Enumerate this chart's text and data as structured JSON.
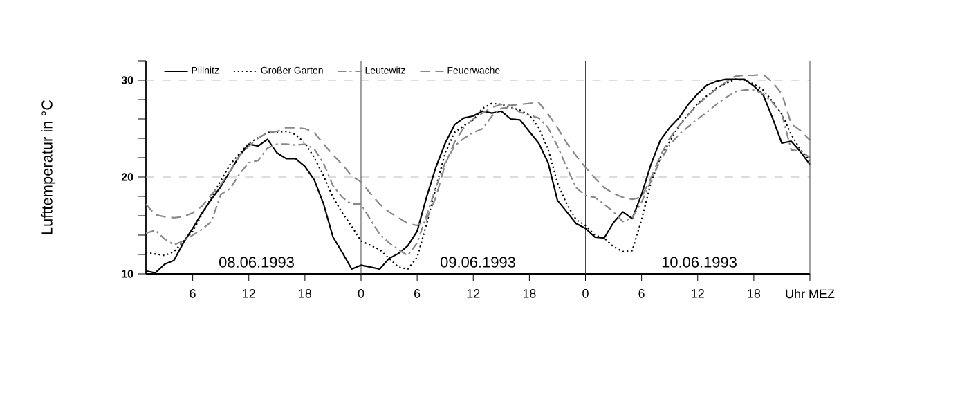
{
  "chart_data": {
    "type": "line",
    "ylabel": "Lufttemperatur in °C",
    "xlim": [
      "1993-06-08T01:00",
      "1993-06-11T00:00"
    ],
    "ylim": [
      10,
      32
    ],
    "xticks": [
      {
        "value": "1993-06-08T06:00",
        "label": "6"
      },
      {
        "value": "1993-06-08T12:00",
        "label": "12"
      },
      {
        "value": "1993-06-08T18:00",
        "label": "18"
      },
      {
        "value": "1993-06-09T00:00",
        "label": "0"
      },
      {
        "value": "1993-06-09T06:00",
        "label": "6"
      },
      {
        "value": "1993-06-09T12:00",
        "label": "12"
      },
      {
        "value": "1993-06-09T18:00",
        "label": "18"
      },
      {
        "value": "1993-06-10T00:00",
        "label": "0"
      },
      {
        "value": "1993-06-10T06:00",
        "label": "6"
      },
      {
        "value": "1993-06-10T12:00",
        "label": "12"
      },
      {
        "value": "1993-06-10T18:00",
        "label": "18"
      },
      {
        "value": "1993-06-11T00:00",
        "label": "Uhr MEZ"
      }
    ],
    "yticks": [
      10,
      {
        "value": 12,
        "label": null
      },
      {
        "value": 14,
        "label": null
      },
      {
        "value": 16,
        "label": null
      },
      {
        "value": 18,
        "label": null
      },
      20,
      {
        "value": 22,
        "label": null
      },
      {
        "value": 24,
        "label": null
      },
      {
        "value": 26,
        "label": null
      },
      {
        "value": 28,
        "label": null
      },
      30,
      {
        "value": 32,
        "label": null
      }
    ],
    "legend": "top left",
    "ref_lines": [
      {
        "axis": "y",
        "value": 20,
        "color": "#bbbbbb",
        "line_style": "dashed"
      },
      {
        "axis": "y",
        "value": 30,
        "color": "#bbbbbb",
        "line_style": "dashed"
      },
      {
        "axis": "x",
        "value": "1993-06-09T00:00",
        "color": "#444444"
      },
      {
        "axis": "x",
        "value": "1993-06-10T00:00",
        "color": "#444444"
      }
    ],
    "annotations": [
      "08.06.1993",
      "09.06.1993",
      "10.06.1993"
    ],
    "x": [
      "1993-06-08T01:00",
      "1993-06-08T02:00",
      "1993-06-08T03:00",
      "1993-06-08T04:00",
      "1993-06-08T05:00",
      "1993-06-08T06:00",
      "1993-06-08T07:00",
      "1993-06-08T08:00",
      "1993-06-08T09:00",
      "1993-06-08T10:00",
      "1993-06-08T11:00",
      "1993-06-08T12:00",
      "1993-06-08T13:00",
      "1993-06-08T14:00",
      "1993-06-08T15:00",
      "1993-06-08T16:00",
      "1993-06-08T17:00",
      "1993-06-08T18:00",
      "1993-06-08T19:00",
      "1993-06-08T20:00",
      "1993-06-08T21:00",
      "1993-06-08T22:00",
      "1993-06-08T23:00",
      "1993-06-09T00:00",
      "1993-06-09T01:00",
      "1993-06-09T02:00",
      "1993-06-09T03:00",
      "1993-06-09T04:00",
      "1993-06-09T05:00",
      "1993-06-09T06:00",
      "1993-06-09T07:00",
      "1993-06-09T08:00",
      "1993-06-09T09:00",
      "1993-06-09T10:00",
      "1993-06-09T11:00",
      "1993-06-09T12:00",
      "1993-06-09T13:00",
      "1993-06-09T14:00",
      "1993-06-09T15:00",
      "1993-06-09T16:00",
      "1993-06-09T17:00",
      "1993-06-09T18:00",
      "1993-06-09T19:00",
      "1993-06-09T20:00",
      "1993-06-09T21:00",
      "1993-06-09T22:00",
      "1993-06-09T23:00",
      "1993-06-10T00:00",
      "1993-06-10T01:00",
      "1993-06-10T02:00",
      "1993-06-10T03:00",
      "1993-06-10T04:00",
      "1993-06-10T05:00",
      "1993-06-10T06:00",
      "1993-06-10T07:00",
      "1993-06-10T08:00",
      "1993-06-10T09:00",
      "1993-06-10T10:00",
      "1993-06-10T11:00",
      "1993-06-10T12:00",
      "1993-06-10T13:00",
      "1993-06-10T14:00",
      "1993-06-10T15:00",
      "1993-06-10T16:00",
      "1993-06-10T17:00",
      "1993-06-10T18:00",
      "1993-06-10T19:00",
      "1993-06-10T20:00",
      "1993-06-10T21:00",
      "1993-06-10T22:00",
      "1993-06-10T23:00",
      "1993-06-11T00:00"
    ],
    "series": [
      {
        "name": "Pillnitz",
        "color": "#000000",
        "line_style": "solid",
        "values": [
          10.3,
          10.1,
          11.0,
          11.4,
          13.2,
          14.7,
          16.3,
          17.7,
          19.0,
          20.6,
          22.2,
          23.4,
          23.2,
          23.9,
          22.5,
          21.9,
          21.9,
          21.1,
          19.7,
          17.2,
          13.8,
          12.2,
          10.5,
          10.9,
          10.7,
          10.5,
          11.6,
          12.1,
          12.9,
          14.4,
          17.9,
          21.0,
          23.5,
          25.4,
          26.1,
          26.3,
          26.8,
          26.6,
          26.8,
          26.0,
          25.9,
          24.7,
          23.5,
          21.5,
          17.6,
          16.4,
          15.2,
          14.7,
          13.8,
          13.7,
          15.3,
          16.4,
          15.7,
          18.2,
          21.3,
          23.8,
          25.1,
          26.1,
          27.5,
          28.6,
          29.5,
          29.9,
          30.1,
          30.1,
          30.1,
          29.4,
          28.5,
          26.1,
          23.5,
          23.7,
          22.6,
          21.3
        ]
      },
      {
        "name": "Großer Garten",
        "color": "#000000",
        "line_style": "dotted",
        "x": [
          "1993-06-08T01:00",
          "1993-06-08T03:00",
          "1993-06-08T04:00",
          "1993-06-08T06:00",
          "1993-06-08T08:00",
          "1993-06-08T10:00",
          "1993-06-08T12:00",
          "1993-06-08T14:00",
          "1993-06-08T16:00",
          "1993-06-08T17:00",
          "1993-06-08T18:00",
          "1993-06-08T19:00",
          "1993-06-08T20:00",
          "1993-06-08T21:00",
          "1993-06-08T22:00",
          "1993-06-08T23:00",
          "1993-06-09T00:00",
          "1993-06-09T02:00",
          "1993-06-09T04:00",
          "1993-06-09T05:00",
          "1993-06-09T06:00",
          "1993-06-09T07:00",
          "1993-06-09T08:00",
          "1993-06-09T09:00",
          "1993-06-09T10:00",
          "1993-06-09T11:00",
          "1993-06-09T12:00",
          "1993-06-09T13:00",
          "1993-06-09T14:00",
          "1993-06-09T15:00",
          "1993-06-09T16:00",
          "1993-06-09T17:00",
          "1993-06-09T18:00",
          "1993-06-09T19:00",
          "1993-06-09T20:00",
          "1993-06-09T21:00",
          "1993-06-09T22:00",
          "1993-06-09T23:00",
          "1993-06-10T00:00",
          "1993-06-10T01:00",
          "1993-06-10T02:00",
          "1993-06-10T03:00",
          "1993-06-10T04:00",
          "1993-06-10T05:00",
          "1993-06-10T06:00",
          "1993-06-10T07:00",
          "1993-06-10T08:00",
          "1993-06-10T10:00",
          "1993-06-10T12:00",
          "1993-06-10T14:00",
          "1993-06-10T16:00",
          "1993-06-10T17:00",
          "1993-06-10T18:00",
          "1993-06-10T19:00",
          "1993-06-10T20:00",
          "1993-06-10T21:00",
          "1993-06-10T22:00",
          "1993-06-10T23:00",
          "1993-06-11T00:00"
        ],
        "values": [
          12.2,
          11.9,
          12.3,
          14.4,
          17.9,
          21.3,
          23.5,
          24.6,
          24.7,
          24.4,
          23.5,
          22.0,
          20.1,
          17.9,
          16.3,
          14.9,
          13.4,
          12.5,
          10.7,
          10.5,
          11.7,
          15.1,
          18.9,
          22.5,
          24.6,
          25.3,
          25.9,
          27.1,
          27.6,
          27.5,
          27.2,
          26.9,
          26.4,
          25.1,
          22.9,
          19.4,
          17.2,
          15.6,
          15.0,
          14.0,
          13.7,
          12.8,
          12.3,
          12.4,
          15.6,
          19.4,
          22.0,
          25.3,
          27.6,
          29.2,
          30.1,
          30.0,
          29.6,
          29.0,
          27.8,
          26.5,
          24.4,
          22.8,
          21.7
        ]
      },
      {
        "name": "Leutewitz",
        "color": "#888888",
        "line_style": "dashdot",
        "values": [
          14.2,
          14.5,
          13.6,
          13.0,
          13.4,
          14.0,
          14.6,
          15.4,
          18.2,
          18.8,
          20.3,
          21.5,
          21.7,
          23.0,
          23.4,
          23.4,
          23.3,
          23.4,
          22.9,
          21.4,
          19.1,
          17.9,
          17.2,
          17.2,
          15.6,
          14.1,
          13.2,
          12.5,
          11.9,
          13.2,
          16.0,
          18.9,
          21.5,
          23.2,
          24.0,
          24.6,
          25.0,
          26.3,
          27.1,
          27.2,
          26.7,
          26.4,
          26.1,
          25.1,
          23.2,
          21.0,
          18.9,
          18.1,
          17.9,
          17.2,
          16.4,
          15.4,
          15.8,
          17.4,
          19.6,
          21.7,
          23.3,
          24.4,
          25.2,
          26.0,
          26.7,
          27.5,
          28.2,
          28.8,
          29.0,
          29.0,
          28.6,
          27.7,
          26.5,
          22.8,
          22.7,
          22.0
        ]
      },
      {
        "name": "Feuerwache",
        "color": "#888888",
        "line_style": "dashed",
        "values": [
          17.2,
          16.1,
          15.9,
          15.8,
          15.9,
          16.3,
          17.0,
          18.2,
          19.2,
          20.6,
          22.2,
          23.2,
          24.0,
          24.6,
          24.7,
          25.1,
          25.1,
          25.0,
          24.6,
          23.4,
          22.3,
          21.3,
          20.1,
          19.5,
          18.3,
          17.2,
          16.4,
          15.8,
          15.2,
          15.0,
          15.6,
          17.9,
          21.3,
          23.6,
          25.1,
          26.0,
          26.6,
          27.2,
          27.5,
          27.4,
          27.5,
          27.6,
          27.7,
          26.5,
          25.1,
          23.5,
          22.2,
          21.0,
          19.9,
          18.9,
          18.3,
          17.9,
          17.7,
          17.9,
          19.9,
          22.2,
          24.0,
          25.3,
          26.4,
          27.5,
          28.3,
          29.1,
          29.8,
          30.4,
          30.5,
          30.5,
          30.6,
          29.8,
          28.6,
          25.5,
          24.8,
          23.8
        ]
      }
    ]
  }
}
